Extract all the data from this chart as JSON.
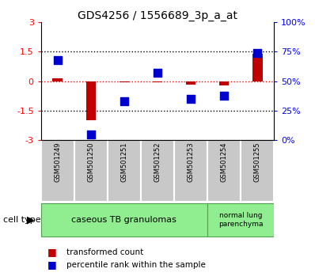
{
  "title": "GDS4256 / 1556689_3p_a_at",
  "samples": [
    "GSM501249",
    "GSM501250",
    "GSM501251",
    "GSM501252",
    "GSM501253",
    "GSM501254",
    "GSM501255"
  ],
  "transformed_count": [
    0.15,
    -2.0,
    -0.05,
    -0.05,
    -0.18,
    -0.2,
    1.4
  ],
  "percentile_rank_raw": [
    68,
    5,
    33,
    57,
    35,
    38,
    74
  ],
  "ylim_left": [
    -3,
    3
  ],
  "ylim_right": [
    0,
    100
  ],
  "right_yticks": [
    0,
    25,
    50,
    75,
    100
  ],
  "right_yticklabels": [
    "0%",
    "25%",
    "50%",
    "75%",
    "100%"
  ],
  "left_yticks": [
    -3,
    -1.5,
    0,
    1.5,
    3
  ],
  "hlines_black": [
    1.5,
    -1.5
  ],
  "red_hline": 0,
  "bar_color": "#C00000",
  "dot_color": "#0000CC",
  "bar_width": 0.3,
  "dot_size": 45,
  "cell_type_groups": [
    {
      "label": "caseous TB granulomas",
      "start": 0,
      "end": 5,
      "color": "#90EE90"
    },
    {
      "label": "normal lung\nparenchyma",
      "start": 5,
      "end": 7,
      "color": "#90EE90"
    }
  ],
  "cell_type_label": "cell type",
  "legend_red": "transformed count",
  "legend_blue": "percentile rank within the sample",
  "plot_bg": "#ffffff",
  "tick_bg": "#c8c8c8"
}
